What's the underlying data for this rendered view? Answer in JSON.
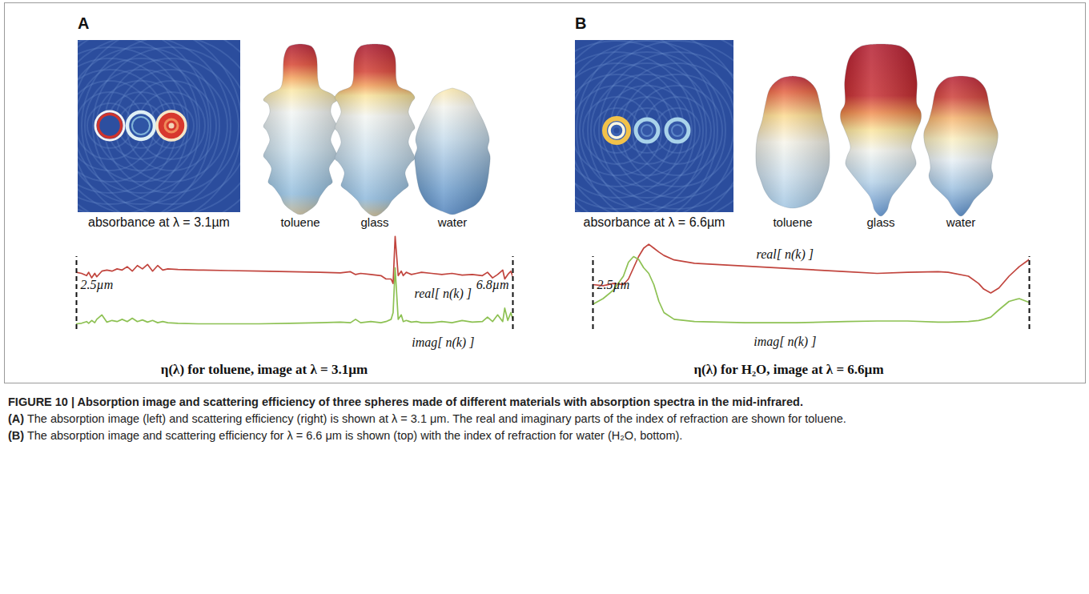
{
  "figure": {
    "panels": [
      {
        "letter": "A",
        "image_label": "absorbance at λ = 3.1µm",
        "shape_labels": [
          "toluene",
          "glass",
          "water"
        ]
      },
      {
        "letter": "B",
        "image_label": "absorbance at λ = 6.6µm",
        "shape_labels": [
          "toluene",
          "glass",
          "water"
        ]
      }
    ],
    "caption": {
      "title": "FIGURE 10 | Absorption image and scattering efficiency of three spheres made of different materials with absorption spectra in the mid-infrared.",
      "parts": [
        {
          "label": "(A)",
          "text": "The absorption image (left) and scattering efficiency (right) is shown at λ = 3.1 μm. The real and imaginary parts of the index of refraction are shown for toluene."
        },
        {
          "label": "(B)",
          "text": "The absorption image and scattering efficiency for λ = 6.6 μm is shown (top) with the index of refraction for water (H₂O, bottom)."
        }
      ]
    }
  },
  "chart_data": [
    {
      "type": "line",
      "title": "η(λ) for toluene, image at λ = 3.1µm",
      "x": [
        2.5,
        2.55,
        2.6,
        2.62,
        2.65,
        2.68,
        2.7,
        2.75,
        2.8,
        2.85,
        2.9,
        2.95,
        3.0,
        3.05,
        3.1,
        3.15,
        3.2,
        3.25,
        3.3,
        3.35,
        3.4,
        3.5,
        3.7,
        4.0,
        4.3,
        4.6,
        4.9,
        5.1,
        5.2,
        5.25,
        5.3,
        5.4,
        5.5,
        5.55,
        5.6,
        5.62,
        5.64,
        5.67,
        5.7,
        5.72,
        5.75,
        5.8,
        5.85,
        5.9,
        6.0,
        6.1,
        6.2,
        6.3,
        6.4,
        6.5,
        6.55,
        6.6,
        6.65,
        6.7,
        6.72,
        6.75,
        6.78,
        6.8
      ],
      "series": [
        {
          "name": "real[ n(k) ]",
          "color": "#c1443d",
          "values": [
            66,
            65,
            63,
            66,
            61,
            65,
            62,
            67,
            68,
            67,
            69,
            68,
            71,
            67,
            72,
            69,
            73,
            67,
            72,
            68,
            69,
            68.5,
            68,
            67.5,
            67,
            66.5,
            66,
            65.5,
            66.5,
            64,
            65,
            64,
            63,
            60,
            60,
            56,
            98,
            63,
            67,
            63,
            66,
            64,
            65,
            66,
            65,
            64,
            65,
            63.5,
            64,
            63,
            66,
            61,
            64,
            68,
            60,
            64,
            67,
            62
          ]
        },
        {
          "name": "imag[ n(k) ]",
          "color": "#8dc153",
          "values": [
            20,
            20.5,
            22,
            20.5,
            23,
            21,
            24,
            28,
            21.5,
            23,
            22,
            24,
            22,
            25,
            22,
            23.5,
            21.5,
            23,
            21,
            22,
            21,
            20.5,
            20,
            20,
            20,
            20.5,
            21,
            21.5,
            21,
            24,
            21,
            22,
            21,
            22,
            24,
            30,
            70,
            24,
            28,
            22,
            23,
            21.5,
            22,
            21,
            21,
            22,
            21,
            23,
            21.5,
            22,
            26,
            22,
            28,
            22,
            34,
            23,
            30,
            24
          ]
        }
      ],
      "xlim": [
        2.5,
        6.8
      ],
      "ylim": [
        0,
        100
      ],
      "tick_labels": false,
      "annotations": [
        {
          "x": 2.5,
          "label": "2.5µm"
        },
        {
          "x": 6.8,
          "label": "6.8µm"
        }
      ]
    },
    {
      "type": "line",
      "title": "η(λ) for H₂O, image at λ = 6.6µm",
      "x": [
        2.5,
        2.6,
        2.7,
        2.8,
        2.85,
        2.9,
        2.95,
        3.0,
        3.05,
        3.1,
        3.15,
        3.2,
        3.3,
        3.5,
        4.0,
        4.5,
        5.0,
        5.3,
        5.6,
        5.9,
        6.0,
        6.2,
        6.3,
        6.35,
        6.42,
        6.5,
        6.6,
        6.7,
        6.8
      ],
      "series": [
        {
          "name": "real[ n(k) ]",
          "color": "#c1443d",
          "values": [
            55,
            54,
            56,
            55,
            60,
            70,
            80,
            87.5,
            91,
            87.5,
            84,
            81,
            77,
            74,
            71.5,
            69,
            66.5,
            65,
            66,
            66.5,
            66,
            62.5,
            56,
            51,
            47.5,
            52,
            62.5,
            71,
            77.5
          ]
        },
        {
          "name": "imag[ n(k) ]",
          "color": "#8dc153",
          "values": [
            37.5,
            42.5,
            50,
            62.5,
            75,
            80,
            77.5,
            70,
            65,
            55,
            40,
            30,
            24,
            22,
            21,
            21,
            22,
            22.5,
            22.5,
            21.5,
            21.5,
            22,
            23,
            24,
            26,
            32.5,
            40,
            42.5,
            39
          ]
        }
      ],
      "xlim": [
        2.5,
        6.8
      ],
      "ylim": [
        0,
        100
      ],
      "tick_labels": false,
      "annotations": [
        {
          "x": 2.5,
          "label": "2.5µm"
        },
        {
          "x": 6.8
        }
      ]
    }
  ]
}
